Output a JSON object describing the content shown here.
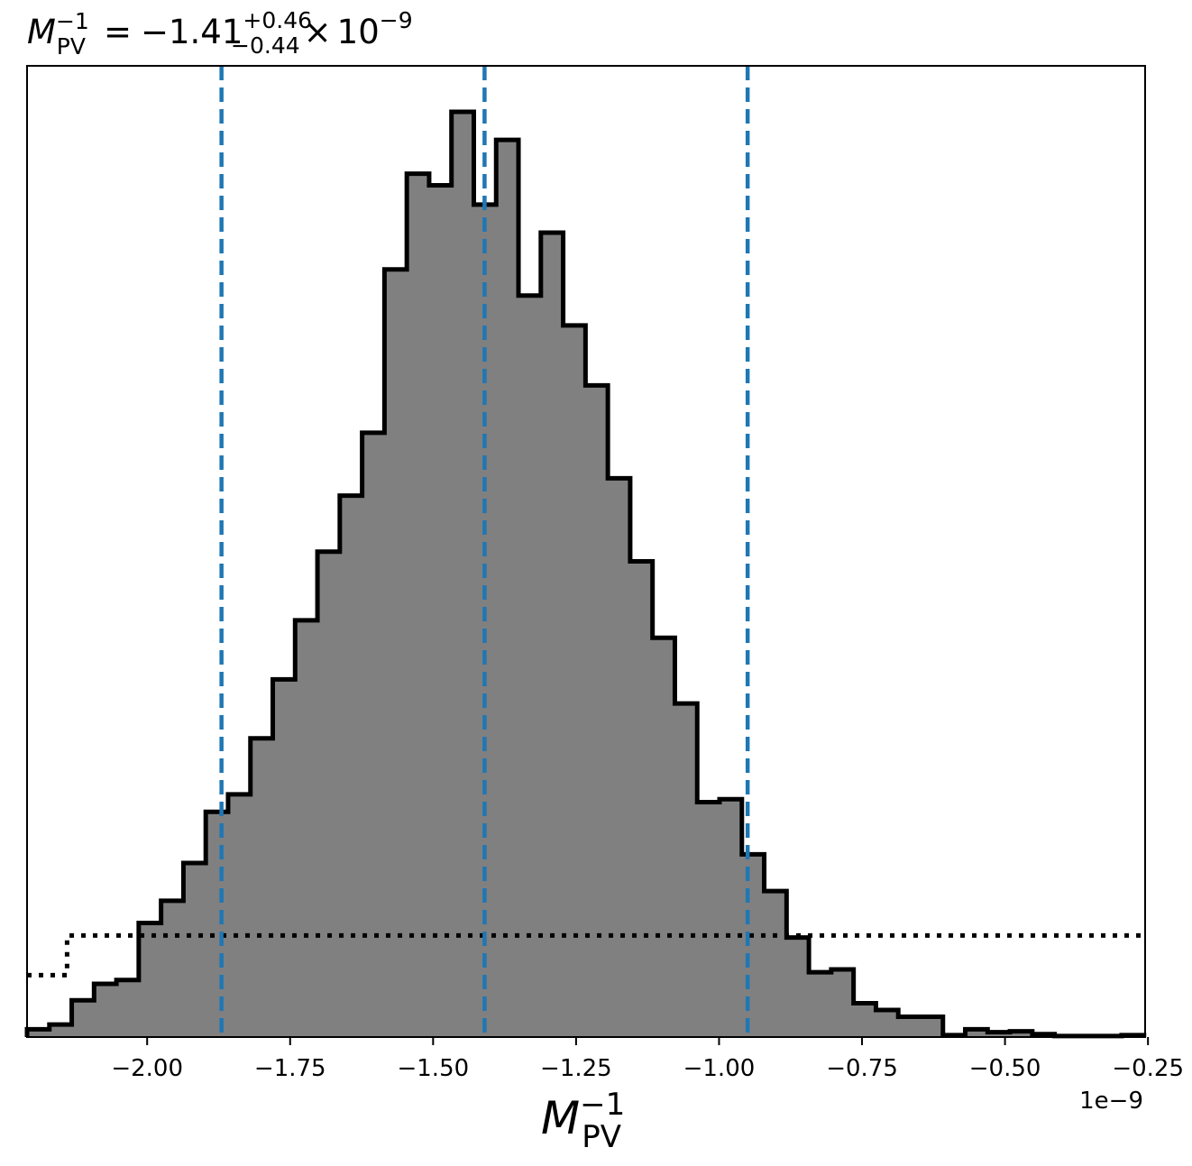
{
  "title": {
    "symbol": "M",
    "subscript": "PV",
    "superscript": "−1",
    "equals": "=",
    "median": "−1.41",
    "upper": "+0.46",
    "lower": "−0.44",
    "times": "×",
    "base": "10",
    "exponent": "−9"
  },
  "xlabel": {
    "symbol": "M",
    "subscript": "PV",
    "superscript": "−1"
  },
  "offset_text": "1e−9",
  "chart_data": {
    "type": "histogram",
    "units_scale": 1e-09,
    "xlim": [
      -2.21,
      -0.255
    ],
    "ylim": [
      0,
      1.0
    ],
    "grid": false,
    "x_ticks": [
      -2.0,
      -1.75,
      -1.5,
      -1.25,
      -1.0,
      -0.75,
      -0.5,
      -0.25
    ],
    "x_tick_labels": [
      "−2.00",
      "−1.75",
      "−1.50",
      "−1.25",
      "−1.00",
      "−0.75",
      "−0.50",
      "−0.25"
    ],
    "bins": {
      "start": -2.21,
      "width": 0.03906,
      "counts": [
        0.008,
        0.013,
        0.038,
        0.055,
        0.059,
        0.118,
        0.141,
        0.18,
        0.233,
        0.251,
        0.309,
        0.37,
        0.431,
        0.502,
        0.56,
        0.625,
        0.794,
        0.893,
        0.881,
        0.957,
        0.861,
        0.928,
        0.767,
        0.832,
        0.736,
        0.674,
        0.578,
        0.492,
        0.413,
        0.345,
        0.243,
        0.246,
        0.189,
        0.151,
        0.103,
        0.067,
        0.07,
        0.035,
        0.028,
        0.021,
        0.021,
        0.002,
        0.008,
        0.005,
        0.006,
        0.003,
        0.001,
        0.001,
        0.001,
        0.002
      ]
    },
    "prior_curve": {
      "style": "dotted",
      "x": [
        -2.21,
        -2.14,
        -2.14,
        -0.255
      ],
      "y": [
        0.064,
        0.064,
        0.105,
        0.105
      ]
    },
    "quantile_lines": {
      "color": "#1f77b4",
      "style": "dashed",
      "values": [
        -1.87,
        -1.41,
        -0.95
      ]
    },
    "hist_fill": "#808080",
    "hist_edge": "#000000"
  }
}
